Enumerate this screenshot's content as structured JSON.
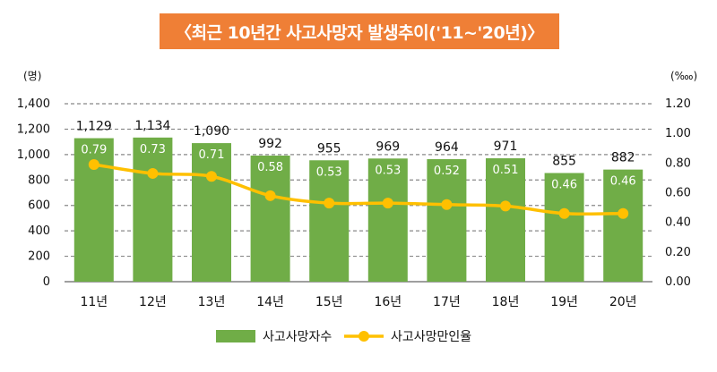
{
  "title": "〈최근 10년간 사고사망자 발생추이('11~'20년)〉",
  "colors": {
    "banner": "#ef7f36",
    "bar": "#70ad47",
    "line": "#ffc000",
    "grid": "#888888"
  },
  "chart_data": {
    "type": "bar",
    "title": "〈최근 10년간 사고사망자 발생추이('11~'20년)〉",
    "categories": [
      "11년",
      "12년",
      "13년",
      "14년",
      "15년",
      "16년",
      "17년",
      "18년",
      "19년",
      "20년"
    ],
    "left_unit": "(명)",
    "right_unit": "(‱)",
    "ylim_left": [
      0,
      1400
    ],
    "ylim_right": [
      0,
      1.2
    ],
    "left_ticks": [
      "0",
      "200",
      "400",
      "600",
      "800",
      "1,000",
      "1,200",
      "1,400"
    ],
    "right_ticks": [
      "0.00",
      "0.20",
      "0.40",
      "0.60",
      "0.80",
      "1.00",
      "1.20"
    ],
    "grid": true,
    "legend_position": "bottom",
    "series": [
      {
        "name": "사고사망자수",
        "type": "bar",
        "axis": "left",
        "values": [
          1129,
          1134,
          1090,
          992,
          955,
          969,
          964,
          971,
          855,
          882
        ],
        "labels": [
          "1,129",
          "1,134",
          "1,090",
          "992",
          "955",
          "969",
          "964",
          "971",
          "855",
          "882"
        ]
      },
      {
        "name": "사고사망만인율",
        "type": "line",
        "axis": "right",
        "values": [
          0.79,
          0.73,
          0.71,
          0.58,
          0.53,
          0.53,
          0.52,
          0.51,
          0.46,
          0.46
        ],
        "labels": [
          "0.79",
          "0.73",
          "0.71",
          "0.58",
          "0.53",
          "0.53",
          "0.52",
          "0.51",
          "0.46",
          "0.46"
        ]
      }
    ]
  }
}
